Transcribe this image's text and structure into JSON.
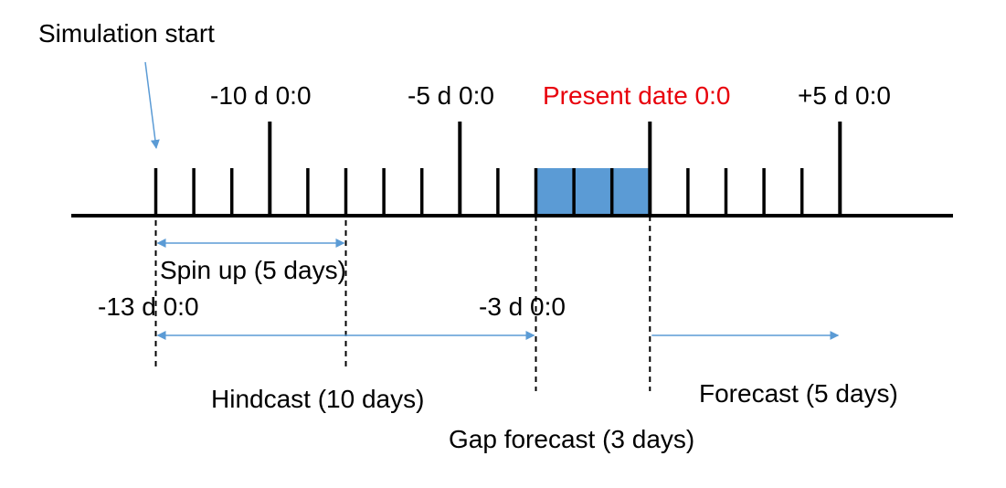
{
  "colors": {
    "axis": "#000000",
    "present": "#e8000b",
    "gap_box": "#5b9bd5",
    "arrow": "#5b9bd5"
  },
  "labels": {
    "simulation_start": "Simulation start",
    "minus10": "-10 d 0:0",
    "minus5": "-5 d 0:0",
    "present": "Present date 0:0",
    "plus5": "+5 d 0:0",
    "spinup": "Spin up (5 days)",
    "minus13": "-13 d 0:0",
    "minus3": "-3 d 0:0",
    "hindcast": "Hindcast (10 days)",
    "gap_forecast": "Gap forecast (3 days)",
    "forecast": "Forecast (5 days)"
  },
  "timeline": {
    "start_day": -13,
    "end_day": 5,
    "major_ticks": [
      -10,
      -5,
      0,
      5
    ],
    "spinup_days": [
      -13,
      -8
    ],
    "hindcast_days": [
      -13,
      -3
    ],
    "gap_days": [
      -3,
      0
    ],
    "forecast_days": [
      0,
      5
    ]
  }
}
